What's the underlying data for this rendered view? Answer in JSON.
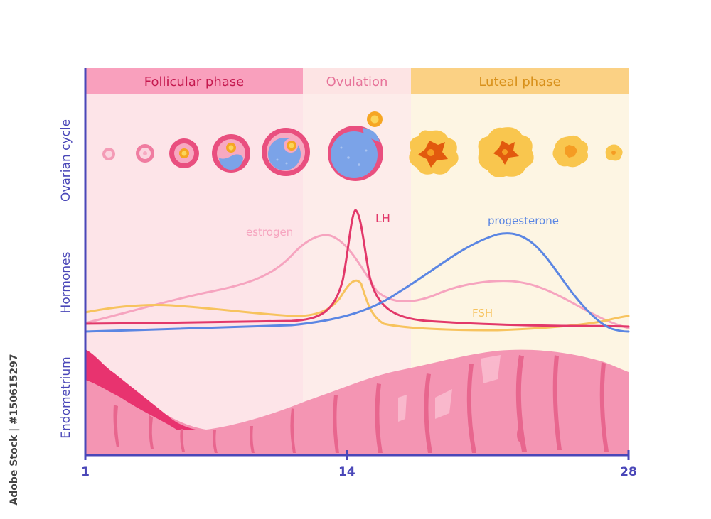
{
  "phases": [
    {
      "label": "Follicular phase",
      "start_day": 1,
      "end_day": 12,
      "color": "#f9a0bd",
      "text_color": "#c5194f",
      "bg": "#fde4e8"
    },
    {
      "label": "Ovulation",
      "start_day": 12,
      "end_day": 16,
      "color": "#fde4e4",
      "text_color": "#e7749a",
      "bg": "#fdecea"
    },
    {
      "label": "Luteal phase",
      "start_day": 16,
      "end_day": 28,
      "color": "#fbd184",
      "text_color": "#d8901a",
      "bg": "#fdf5e3"
    }
  ],
  "row_labels": {
    "ovarian": "Ovarian cycle",
    "hormones": "Hormones",
    "endometrium": "Endometrium"
  },
  "x_axis": {
    "min": 1,
    "max": 28,
    "ticks": [
      1,
      14,
      28
    ],
    "color": "#4a47b8"
  },
  "hormone_labels": {
    "estrogen": "estrogen",
    "lh": "LH",
    "progesterone": "progesterone",
    "fsh": "FSH"
  },
  "colors": {
    "estrogen": "#f6a4bf",
    "lh": "#e2386a",
    "progesterone": "#5b86e3",
    "fsh": "#f7c35e",
    "endometrium": "#f495b3",
    "endometrium_dark": "#e8336f",
    "follicle_outer": "#e94f7f",
    "follicle_inner": "#f7a9c1",
    "follicle_fluid": "#7ba3e8",
    "egg": "#f6a623",
    "corpus": "#f9c64e",
    "corpus_core": "#e25a0e"
  },
  "watermark": {
    "side_text": "Adobe Stock | #150615297"
  }
}
